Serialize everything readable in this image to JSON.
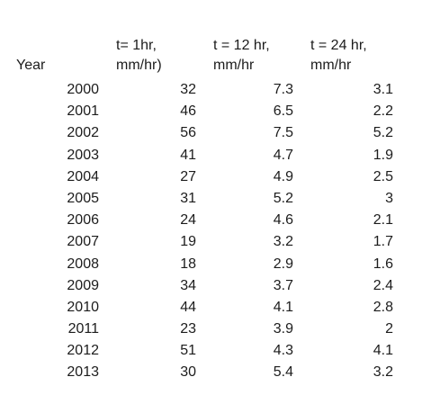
{
  "table": {
    "headers": {
      "year": "Year",
      "col1_line1": "t= 1hr,",
      "col1_line2": "mm/hr)",
      "col2_line1": "t = 12 hr,",
      "col2_line2": "mm/hr",
      "col3_line1": "t = 24 hr,",
      "col3_line2": "mm/hr"
    },
    "rows": [
      {
        "year": "2000",
        "t1": "32",
        "t12": "7.3",
        "t24": "3.1"
      },
      {
        "year": "2001",
        "t1": "46",
        "t12": "6.5",
        "t24": "2.2"
      },
      {
        "year": "2002",
        "t1": "56",
        "t12": "7.5",
        "t24": "5.2"
      },
      {
        "year": "2003",
        "t1": "41",
        "t12": "4.7",
        "t24": "1.9"
      },
      {
        "year": "2004",
        "t1": "27",
        "t12": "4.9",
        "t24": "2.5"
      },
      {
        "year": "2005",
        "t1": "31",
        "t12": "5.2",
        "t24": "3"
      },
      {
        "year": "2006",
        "t1": "24",
        "t12": "4.6",
        "t24": "2.1"
      },
      {
        "year": "2007",
        "t1": "19",
        "t12": "3.2",
        "t24": "1.7"
      },
      {
        "year": "2008",
        "t1": "18",
        "t12": "2.9",
        "t24": "1.6"
      },
      {
        "year": "2009",
        "t1": "34",
        "t12": "3.7",
        "t24": "2.4"
      },
      {
        "year": "2010",
        "t1": "44",
        "t12": "4.1",
        "t24": "2.8"
      },
      {
        "year": "2011",
        "t1": "23",
        "t12": "3.9",
        "t24": "2"
      },
      {
        "year": "2012",
        "t1": "51",
        "t12": "4.3",
        "t24": "4.1"
      },
      {
        "year": "2013",
        "t1": "30",
        "t12": "5.4",
        "t24": "3.2"
      }
    ]
  }
}
